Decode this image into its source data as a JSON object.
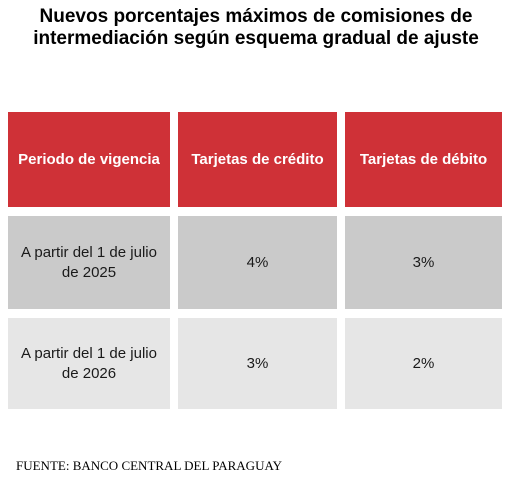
{
  "title": "Nuevos porcentajes máximos de comisiones de intermediación según esquema gradual de ajuste",
  "table": {
    "headers": [
      "Periodo de vigencia",
      "Tarjetas de crédito",
      "Tarjetas de débito"
    ],
    "rows": [
      [
        "A partir del 1 de julio de 2025",
        "4%",
        "3%"
      ],
      [
        "A partir del 1 de julio de 2026",
        "3%",
        "2%"
      ]
    ]
  },
  "source": "FUENTE: BANCO CENTRAL DEL PARAGUAY",
  "colors": {
    "header_bg": "#cf3137",
    "row1_bg": "#cacaca",
    "row2_bg": "#e6e6e6"
  }
}
